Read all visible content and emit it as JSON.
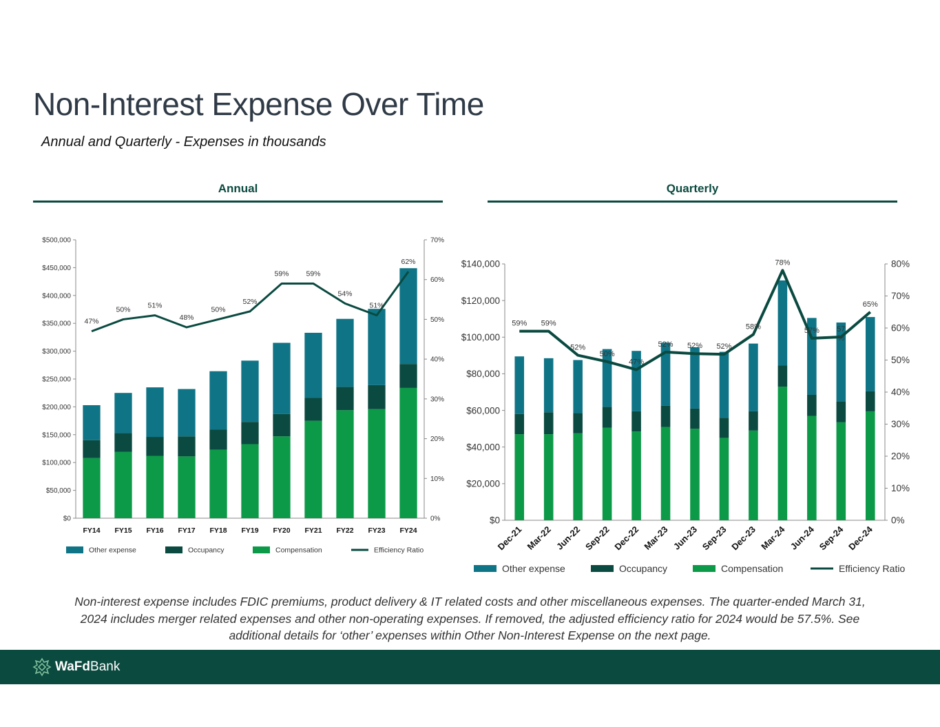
{
  "page": {
    "title": "Non-Interest Expense Over Time",
    "subtitle": "Annual and Quarterly - Expenses in thousands",
    "footnote": "Non-interest expense includes FDIC premiums, product delivery & IT related costs and other miscellaneous expenses.  The quarter-ended March 31, 2024 includes merger related expenses and other non-operating expenses.  If removed, the adjusted efficiency ratio for 2024 would be 57.5%.  See additional details for ‘other’ expenses within Other Non-Interest Expense on the next page.",
    "brand_bold": "WaFd",
    "brand_regular": "Bank"
  },
  "colors": {
    "other_expense": "#0f7486",
    "occupancy": "#0a4a40",
    "compensation": "#0c9a48",
    "efficiency_line": "#0a4a40",
    "header": "#0b4a3f"
  },
  "chart_data": [
    {
      "id": "annual",
      "type": "bar",
      "stacked": true,
      "heading": "Annual",
      "categories": [
        "FY14",
        "FY15",
        "FY16",
        "FY17",
        "FY18",
        "FY19",
        "FY20",
        "FY21",
        "FY22",
        "FY23",
        "FY24"
      ],
      "series": [
        {
          "name": "Compensation",
          "values": [
            108000,
            119000,
            112000,
            111000,
            123000,
            133000,
            147000,
            175000,
            194000,
            196000,
            234000
          ]
        },
        {
          "name": "Occupancy",
          "values": [
            32000,
            34000,
            34000,
            36000,
            36000,
            40000,
            40000,
            41000,
            42000,
            43000,
            43000
          ]
        },
        {
          "name": "Other expense",
          "values": [
            63000,
            72000,
            89000,
            85000,
            105000,
            110000,
            128000,
            117000,
            122000,
            137000,
            172000
          ]
        }
      ],
      "line": {
        "name": "Efficiency Ratio",
        "values": [
          47,
          50,
          51,
          48,
          50,
          52,
          59,
          59,
          54,
          51,
          62
        ],
        "labels": [
          "47%",
          "50%",
          "51%",
          "48%",
          "50%",
          "52%",
          "59%",
          "59%",
          "54%",
          "51%",
          "62%"
        ]
      },
      "ylim": [
        0,
        500000
      ],
      "y_ticks": [
        "$0",
        "$50,000",
        "$100,000",
        "$150,000",
        "$200,000",
        "$250,000",
        "$300,000",
        "$350,000",
        "$400,000",
        "$450,000",
        "$500,000"
      ],
      "y2lim": [
        0,
        70
      ],
      "y2_ticks": [
        "0%",
        "10%",
        "20%",
        "30%",
        "40%",
        "50%",
        "60%",
        "70%"
      ],
      "legend": [
        "Other expense",
        "Occupancy",
        "Compensation",
        "Efficiency Ratio"
      ]
    },
    {
      "id": "quarterly",
      "type": "bar",
      "stacked": true,
      "heading": "Quarterly",
      "categories": [
        "Dec-21",
        "Mar-22",
        "Jun-22",
        "Sep-22",
        "Dec-22",
        "Mar-23",
        "Jun-23",
        "Sep-23",
        "Dec-23",
        "Mar-24",
        "Jun-24",
        "Sep-24",
        "Dec-24"
      ],
      "series": [
        {
          "name": "Compensation",
          "values": [
            47000,
            47000,
            47500,
            50500,
            48500,
            51000,
            50000,
            45000,
            49000,
            73000,
            57000,
            53500,
            59500
          ]
        },
        {
          "name": "Occupancy",
          "values": [
            11000,
            12000,
            11000,
            11500,
            11000,
            11500,
            11000,
            11000,
            10500,
            11500,
            11500,
            11500,
            11000
          ]
        },
        {
          "name": "Other expense",
          "values": [
            31500,
            29500,
            29000,
            31500,
            33000,
            34500,
            33500,
            36000,
            37000,
            46500,
            42000,
            43000,
            40500
          ]
        }
      ],
      "line": {
        "name": "Efficiency Ratio",
        "values": [
          59,
          59,
          51.5,
          49.5,
          47,
          52.5,
          52,
          51.8,
          58,
          78,
          56.8,
          57.2,
          65
        ],
        "labels": [
          "59%",
          "59%",
          "52%",
          "50%",
          "47%",
          "52%",
          "52%",
          "52%",
          "58%",
          "78%",
          "57%",
          "57\n%",
          "65%"
        ]
      },
      "ylim": [
        0,
        140000
      ],
      "y_ticks": [
        "$0",
        "$20,000",
        "$40,000",
        "$60,000",
        "$80,000",
        "$100,000",
        "$120,000",
        "$140,000"
      ],
      "y2lim": [
        0,
        80
      ],
      "y2_ticks": [
        "0%",
        "10%",
        "20%",
        "30%",
        "40%",
        "50%",
        "60%",
        "70%",
        "80%"
      ],
      "legend": [
        "Other expense",
        "Occupancy",
        "Compensation",
        "Efficiency Ratio"
      ]
    }
  ]
}
